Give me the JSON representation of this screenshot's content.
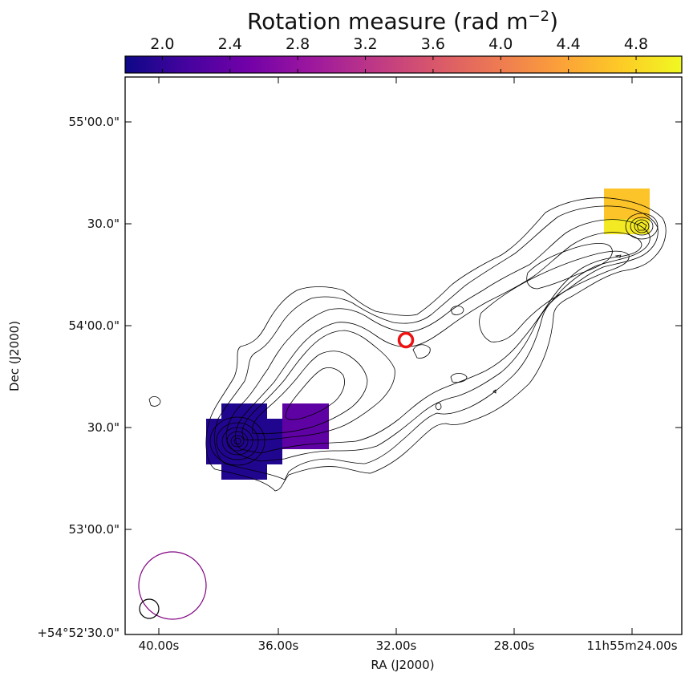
{
  "chart_data": {
    "type": "heatmap",
    "colorbar": {
      "title": "Rotation measure (rad m",
      "title_exp": "−2",
      "title_close": ")",
      "range": [
        1.78,
        5.07
      ],
      "ticks": [
        2.0,
        2.4,
        2.8,
        3.2,
        3.6,
        4.0,
        4.4,
        4.8
      ],
      "tick_labels": [
        "2.0",
        "2.4",
        "2.8",
        "3.2",
        "3.6",
        "4.0",
        "4.4",
        "4.8"
      ],
      "colormap": [
        "#0d0887",
        "#46039f",
        "#7201a8",
        "#9c179e",
        "#bd3786",
        "#d8576b",
        "#ed7953",
        "#fb9f3a",
        "#fdca26",
        "#f0f921"
      ]
    },
    "xlabel": "RA (J2000)",
    "ylabel": "Dec (J2000)",
    "x_ticks": [
      "40.00s",
      "36.00s",
      "32.00s",
      "28.00s",
      "11h55m24.00s"
    ],
    "y_ticks": [
      "55'00.0\"",
      "30.0\"",
      "54'00.0\"",
      "30.0\"",
      "53'00.0\"",
      "+54°52'30.0\""
    ],
    "rm_pixels": [
      {
        "id": "east-block-1",
        "rm": 1.9
      },
      {
        "id": "east-block-2",
        "rm": 1.9
      },
      {
        "id": "east-block-3",
        "rm": 1.9
      },
      {
        "id": "center-east-block",
        "rm": 2.35
      },
      {
        "id": "west-block-top",
        "rm": 4.65
      },
      {
        "id": "west-block-bottom",
        "rm": 4.95
      }
    ],
    "markers": [
      {
        "name": "core-marker",
        "shape": "ring",
        "color": "#ee1111"
      },
      {
        "name": "large-beam",
        "shape": "ellipse",
        "color": "#800080"
      },
      {
        "name": "small-beam",
        "shape": "ellipse",
        "color": "#000000"
      }
    ]
  }
}
